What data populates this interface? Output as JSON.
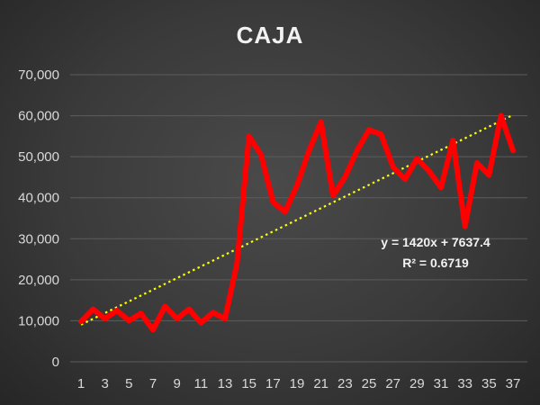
{
  "chart_data": {
    "type": "line",
    "title": "CAJA",
    "xlabel": "",
    "ylabel": "",
    "x": [
      1,
      2,
      3,
      4,
      5,
      6,
      7,
      8,
      9,
      10,
      11,
      12,
      13,
      14,
      15,
      16,
      17,
      18,
      19,
      20,
      21,
      22,
      23,
      24,
      25,
      26,
      27,
      28,
      29,
      30,
      31,
      32,
      33,
      34,
      35,
      36,
      37
    ],
    "x_tick_labels": [
      "1",
      "3",
      "5",
      "7",
      "9",
      "11",
      "13",
      "15",
      "17",
      "19",
      "21",
      "23",
      "25",
      "27",
      "29",
      "31",
      "33",
      "35",
      "37"
    ],
    "ylim": [
      0,
      70000
    ],
    "y_tick_labels": [
      "0",
      "10,000",
      "20,000",
      "30,000",
      "40,000",
      "50,000",
      "60,000",
      "70,000"
    ],
    "grid": true,
    "legend": "none",
    "series": [
      {
        "color": "#ff0000",
        "values": [
          9800,
          12800,
          10500,
          12500,
          10000,
          11800,
          7800,
          13500,
          10500,
          12800,
          9500,
          12000,
          10500,
          24000,
          55000,
          50500,
          39000,
          36500,
          43000,
          51500,
          58500,
          40500,
          45000,
          51500,
          56500,
          55500,
          47500,
          44500,
          49500,
          46500,
          42500,
          54000,
          33000,
          48500,
          45500,
          60000,
          51500
        ]
      }
    ],
    "trendline": {
      "type": "linear",
      "slope": 1420,
      "intercept": 7637.4,
      "color": "#ffff00",
      "equation_label": "y = 1420x + 7637.4",
      "r2_label": "R² = 0.6719"
    }
  }
}
